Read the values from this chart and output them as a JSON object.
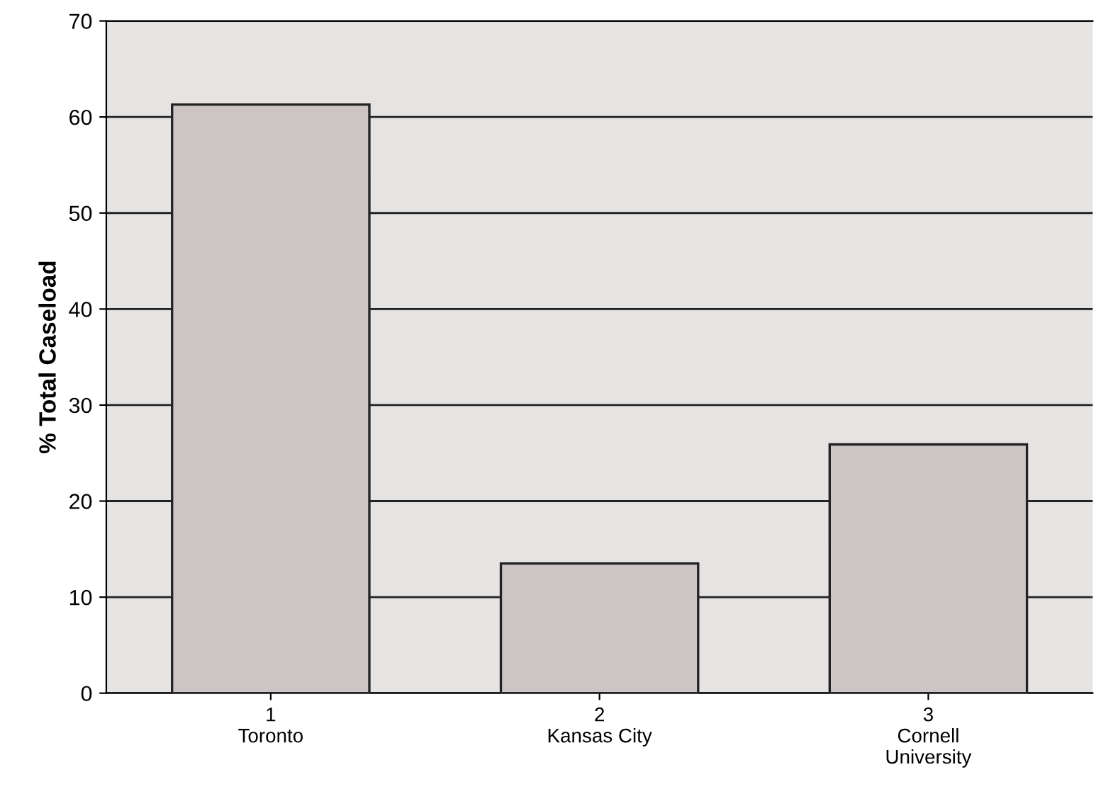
{
  "chart_data": {
    "type": "bar",
    "ylabel": "% Total Caseload",
    "categories": [
      "1\nToronto",
      "2\nKansas City",
      "3\nCornell\nUniversity"
    ],
    "values": [
      61.3,
      13.5,
      25.9
    ],
    "color": "#cdc5c5",
    "ylim": [
      0,
      70
    ],
    "yticks": [
      0,
      10,
      20,
      30,
      40,
      50,
      60,
      70
    ],
    "grid": "y"
  }
}
